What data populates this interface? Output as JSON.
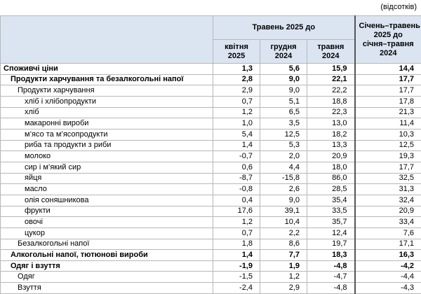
{
  "note": "(відсотків)",
  "header": {
    "group": "Травень 2025 до",
    "columns": [
      [
        "квітня",
        "2025"
      ],
      [
        "грудня",
        "2024"
      ],
      [
        "травня",
        "2024"
      ]
    ],
    "last": [
      "Січень–травень",
      "2025 до",
      "січня–травня",
      "2024"
    ]
  },
  "table": {
    "rows": [
      {
        "label": "Споживчі ціни",
        "level": 0,
        "bold": true,
        "values": [
          "1,3",
          "5,6",
          "15,9",
          "14,4"
        ]
      },
      {
        "label": "Продукти харчування та безалкогольні напої",
        "level": 1,
        "bold": true,
        "values": [
          "2,8",
          "9,0",
          "22,1",
          "17,7"
        ]
      },
      {
        "label": "Продукти харчування",
        "level": 2,
        "bold": false,
        "values": [
          "2,9",
          "9,0",
          "22,2",
          "17,7"
        ]
      },
      {
        "label": "хліб і хлібопродукти",
        "level": 3,
        "bold": false,
        "values": [
          "0,7",
          "5,1",
          "18,8",
          "17,8"
        ]
      },
      {
        "label": "хліб",
        "level": 3,
        "bold": false,
        "values": [
          "1,2",
          "6,5",
          "22,3",
          "21,3"
        ]
      },
      {
        "label": "макаронні вироби",
        "level": 3,
        "bold": false,
        "values": [
          "1,0",
          "3,5",
          "13,0",
          "11,4"
        ]
      },
      {
        "label": "м’ясо та м’ясопродукти",
        "level": 3,
        "bold": false,
        "values": [
          "5,4",
          "12,5",
          "18,2",
          "10,3"
        ]
      },
      {
        "label": "риба та продукти з риби",
        "level": 3,
        "bold": false,
        "values": [
          "1,4",
          "5,3",
          "13,3",
          "12,5"
        ]
      },
      {
        "label": "молоко",
        "level": 3,
        "bold": false,
        "values": [
          "-0,7",
          "2,0",
          "20,9",
          "19,3"
        ]
      },
      {
        "label": "сир і м’який сир",
        "level": 3,
        "bold": false,
        "values": [
          "0,6",
          "4,4",
          "18,0",
          "17,7"
        ]
      },
      {
        "label": "яйця",
        "level": 3,
        "bold": false,
        "values": [
          "-8,7",
          "-15,8",
          "86,0",
          "32,5"
        ]
      },
      {
        "label": "масло",
        "level": 3,
        "bold": false,
        "values": [
          "-0,8",
          "2,6",
          "28,5",
          "31,3"
        ]
      },
      {
        "label": "олія соняшникова",
        "level": 3,
        "bold": false,
        "values": [
          "0,4",
          "9,0",
          "35,4",
          "32,4"
        ]
      },
      {
        "label": "фрукти",
        "level": 3,
        "bold": false,
        "values": [
          "17,6",
          "39,1",
          "33,5",
          "20,9"
        ]
      },
      {
        "label": "овочі",
        "level": 3,
        "bold": false,
        "values": [
          "1,2",
          "10,4",
          "35,7",
          "33,4"
        ]
      },
      {
        "label": "цукор",
        "level": 3,
        "bold": false,
        "values": [
          "0,7",
          "2,2",
          "12,4",
          "7,6"
        ]
      },
      {
        "label": "Безалкогольні напої",
        "level": 2,
        "bold": false,
        "values": [
          "1,8",
          "8,6",
          "19,7",
          "17,1"
        ]
      },
      {
        "label": "Алкогольні напої, тютюнові вироби",
        "level": 1,
        "bold": true,
        "values": [
          "1,4",
          "7,7",
          "18,3",
          "16,3"
        ]
      },
      {
        "label": "Одяг і взуття",
        "level": 1,
        "bold": true,
        "values": [
          "-1,9",
          "1,9",
          "-4,8",
          "-4,2"
        ]
      },
      {
        "label": "Одяг",
        "level": 2,
        "bold": false,
        "values": [
          "-1,5",
          "1,2",
          "-4,7",
          "-4,4"
        ]
      },
      {
        "label": "Взуття",
        "level": 2,
        "bold": false,
        "values": [
          "-2,4",
          "2,9",
          "-4,8",
          "-4,3"
        ]
      }
    ]
  }
}
